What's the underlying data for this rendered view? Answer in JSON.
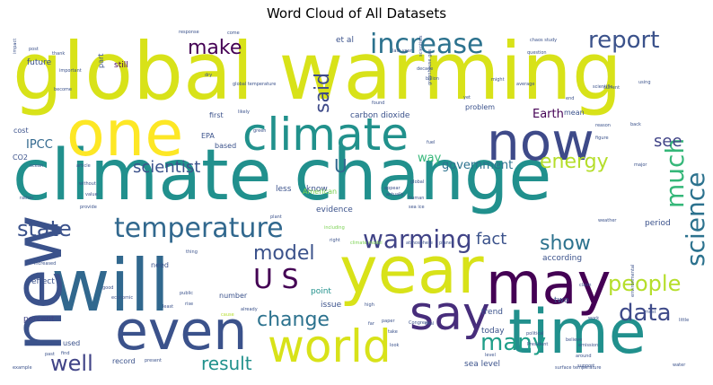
{
  "chart_data": {
    "type": "wordcloud",
    "title": "Word Cloud of All Datasets",
    "colormap": "viridis",
    "words": [
      {
        "text": "global warming",
        "weight": 100,
        "color": "#d8e219",
        "orientation": "horizontal"
      },
      {
        "text": "climate change",
        "weight": 92,
        "color": "#21908d",
        "orientation": "horizontal"
      },
      {
        "text": "year",
        "weight": 88,
        "color": "#d8e219",
        "orientation": "horizontal"
      },
      {
        "text": "will",
        "weight": 86,
        "color": "#31688e",
        "orientation": "horizontal"
      },
      {
        "text": "new",
        "weight": 80,
        "color": "#3b528b",
        "orientation": "vertical"
      },
      {
        "text": "one",
        "weight": 78,
        "color": "#fde725",
        "orientation": "horizontal"
      },
      {
        "text": "time",
        "weight": 74,
        "color": "#21908d",
        "orientation": "horizontal"
      },
      {
        "text": "may",
        "weight": 72,
        "color": "#440154",
        "orientation": "horizontal"
      },
      {
        "text": "even",
        "weight": 68,
        "color": "#3b528b",
        "orientation": "horizontal"
      },
      {
        "text": "now",
        "weight": 66,
        "color": "#3e4a89",
        "orientation": "horizontal"
      },
      {
        "text": "say",
        "weight": 64,
        "color": "#472d7b",
        "orientation": "horizontal"
      },
      {
        "text": "climate",
        "weight": 60,
        "color": "#21918c",
        "orientation": "horizontal"
      },
      {
        "text": "world",
        "weight": 58,
        "color": "#d8e219",
        "orientation": "horizontal"
      },
      {
        "text": "temperature",
        "weight": 40,
        "color": "#31688e",
        "orientation": "horizontal"
      },
      {
        "text": "increase",
        "weight": 38,
        "color": "#2c728e",
        "orientation": "horizontal"
      },
      {
        "text": "report",
        "weight": 34,
        "color": "#3b528b",
        "orientation": "horizontal"
      },
      {
        "text": "warming",
        "weight": 33,
        "color": "#414487",
        "orientation": "horizontal"
      },
      {
        "text": "science",
        "weight": 33,
        "color": "#2c728e",
        "orientation": "vertical"
      },
      {
        "text": "much",
        "weight": 32,
        "color": "#35b779",
        "orientation": "vertical"
      },
      {
        "text": "U S",
        "weight": 32,
        "color": "#440154",
        "orientation": "horizontal"
      },
      {
        "text": "state",
        "weight": 30,
        "color": "#3b528b",
        "orientation": "horizontal"
      },
      {
        "text": "data",
        "weight": 30,
        "color": "#3e4a89",
        "orientation": "horizontal"
      },
      {
        "text": "many",
        "weight": 30,
        "color": "#1f9e89",
        "orientation": "horizontal"
      },
      {
        "text": "people",
        "weight": 29,
        "color": "#b5de2b",
        "orientation": "horizontal"
      },
      {
        "text": "well",
        "weight": 28,
        "color": "#414487",
        "orientation": "horizontal"
      },
      {
        "text": "said",
        "weight": 28,
        "color": "#3e4a89",
        "orientation": "vertical"
      },
      {
        "text": "make",
        "weight": 27,
        "color": "#440154",
        "orientation": "horizontal"
      },
      {
        "text": "change",
        "weight": 26,
        "color": "#2c728e",
        "orientation": "horizontal"
      },
      {
        "text": "model",
        "weight": 26,
        "color": "#3b528b",
        "orientation": "horizontal"
      },
      {
        "text": "show",
        "weight": 25,
        "color": "#2c728e",
        "orientation": "horizontal"
      },
      {
        "text": "energy",
        "weight": 24,
        "color": "#b5de2b",
        "orientation": "horizontal"
      },
      {
        "text": "result",
        "weight": 22,
        "color": "#21918c",
        "orientation": "horizontal"
      },
      {
        "text": "scientist",
        "weight": 21,
        "color": "#3b528b",
        "orientation": "horizontal"
      },
      {
        "text": "fact",
        "weight": 21,
        "color": "#3b528b",
        "orientation": "horizontal"
      },
      {
        "text": "see",
        "weight": 20,
        "color": "#414487",
        "orientation": "horizontal"
      },
      {
        "text": "U",
        "weight": 20,
        "color": "#31688e",
        "orientation": "horizontal"
      },
      {
        "text": "IPCC",
        "weight": 14,
        "color": "#31688e",
        "orientation": "horizontal"
      },
      {
        "text": "Earth",
        "weight": 14,
        "color": "#440154",
        "orientation": "horizontal"
      },
      {
        "text": "government",
        "weight": 14,
        "color": "#2c728e",
        "orientation": "horizontal"
      },
      {
        "text": "way",
        "weight": 14,
        "color": "#35b779",
        "orientation": "horizontal"
      },
      {
        "text": "percent",
        "weight": 11,
        "color": "#414487",
        "orientation": "horizontal"
      },
      {
        "text": "carbon dioxide",
        "weight": 10,
        "color": "#3b528b",
        "orientation": "horizontal"
      },
      {
        "text": "future",
        "weight": 10,
        "color": "#3b528b",
        "orientation": "horizontal"
      },
      {
        "text": "still",
        "weight": 10,
        "color": "#440154",
        "orientation": "horizontal"
      },
      {
        "text": "et al",
        "weight": 10,
        "color": "#3b528b",
        "orientation": "horizontal"
      },
      {
        "text": "part",
        "weight": 9,
        "color": "#3b528b",
        "orientation": "vertical"
      },
      {
        "text": "less",
        "weight": 10,
        "color": "#3b528b",
        "orientation": "horizontal"
      },
      {
        "text": "know",
        "weight": 10,
        "color": "#3b528b",
        "orientation": "horizontal"
      },
      {
        "text": "evidence",
        "weight": 10,
        "color": "#3b528b",
        "orientation": "horizontal"
      },
      {
        "text": "according",
        "weight": 10,
        "color": "#3b528b",
        "orientation": "horizontal"
      },
      {
        "text": "period",
        "weight": 10,
        "color": "#3b528b",
        "orientation": "horizontal"
      },
      {
        "text": "issue",
        "weight": 10,
        "color": "#3b528b",
        "orientation": "horizontal"
      },
      {
        "text": "point",
        "weight": 10,
        "color": "#21918c",
        "orientation": "horizontal"
      },
      {
        "text": "trend",
        "weight": 10,
        "color": "#3b528b",
        "orientation": "horizontal"
      },
      {
        "text": "today",
        "weight": 10,
        "color": "#3b528b",
        "orientation": "horizontal"
      },
      {
        "text": "two",
        "weight": 10,
        "color": "#3b528b",
        "orientation": "horizontal"
      },
      {
        "text": "sea level",
        "weight": 10,
        "color": "#3b528b",
        "orientation": "horizontal"
      },
      {
        "text": "effect",
        "weight": 10,
        "color": "#3b528b",
        "orientation": "horizontal"
      },
      {
        "text": "need",
        "weight": 9,
        "color": "#3b528b",
        "orientation": "horizontal"
      },
      {
        "text": "number",
        "weight": 9,
        "color": "#3b528b",
        "orientation": "horizontal"
      },
      {
        "text": "record",
        "weight": 9,
        "color": "#3b528b",
        "orientation": "horizontal"
      },
      {
        "text": "used",
        "weight": 9,
        "color": "#3b528b",
        "orientation": "horizontal"
      },
      {
        "text": "use",
        "weight": 9,
        "color": "#3b528b",
        "orientation": "horizontal"
      },
      {
        "text": "cost",
        "weight": 9,
        "color": "#3b528b",
        "orientation": "horizontal"
      },
      {
        "text": "CO2",
        "weight": 9,
        "color": "#3b528b",
        "orientation": "horizontal"
      },
      {
        "text": "EPA",
        "weight": 9,
        "color": "#3b528b",
        "orientation": "horizontal"
      },
      {
        "text": "based",
        "weight": 9,
        "color": "#3b528b",
        "orientation": "horizontal"
      },
      {
        "text": "first",
        "weight": 9,
        "color": "#3b528b",
        "orientation": "horizontal"
      },
      {
        "text": "problem",
        "weight": 9,
        "color": "#3b528b",
        "orientation": "horizontal"
      },
      {
        "text": "mean",
        "weight": 9,
        "color": "#3b528b",
        "orientation": "horizontal"
      },
      {
        "text": "American",
        "weight": 8,
        "color": "#7ad151",
        "orientation": "horizontal"
      },
      {
        "text": "climate model",
        "weight": 4,
        "color": "#7ad151",
        "orientation": "horizontal"
      },
      {
        "text": "atmosphere",
        "weight": 4,
        "color": "#3b528b",
        "orientation": "horizontal"
      },
      {
        "text": "planet",
        "weight": 4,
        "color": "#3b528b",
        "orientation": "horizontal"
      },
      {
        "text": "surface temperature",
        "weight": 4,
        "color": "#3b528b",
        "orientation": "horizontal"
      },
      {
        "text": "last year",
        "weight": 4,
        "color": "#3b528b",
        "orientation": "horizontal"
      },
      {
        "text": "global temperature",
        "weight": 4,
        "color": "#3b528b",
        "orientation": "horizontal"
      },
      {
        "text": "response",
        "weight": 4,
        "color": "#3b528b",
        "orientation": "horizontal"
      },
      {
        "text": "chaos study",
        "weight": 4,
        "color": "#3b528b",
        "orientation": "horizontal"
      },
      {
        "text": "question",
        "weight": 4,
        "color": "#3b528b",
        "orientation": "horizontal"
      },
      {
        "text": "decade",
        "weight": 4,
        "color": "#3b528b",
        "orientation": "horizontal"
      },
      {
        "text": "billion",
        "weight": 4,
        "color": "#3b528b",
        "orientation": "horizontal"
      },
      {
        "text": "average",
        "weight": 4,
        "color": "#3b528b",
        "orientation": "horizontal"
      },
      {
        "text": "important",
        "weight": 4,
        "color": "#3b528b",
        "orientation": "horizontal"
      },
      {
        "text": "thank",
        "weight": 4,
        "color": "#3b528b",
        "orientation": "horizontal"
      },
      {
        "text": "post",
        "weight": 4,
        "color": "#3b528b",
        "orientation": "horizontal"
      },
      {
        "text": "found",
        "weight": 4,
        "color": "#3b528b",
        "orientation": "horizontal"
      },
      {
        "text": "scientific",
        "weight": 4,
        "color": "#3b528b",
        "orientation": "horizontal"
      },
      {
        "text": "reason",
        "weight": 4,
        "color": "#3b528b",
        "orientation": "horizontal"
      },
      {
        "text": "major",
        "weight": 4,
        "color": "#3b528b",
        "orientation": "horizontal"
      },
      {
        "text": "green",
        "weight": 4,
        "color": "#3b528b",
        "orientation": "horizontal"
      },
      {
        "text": "global",
        "weight": 4,
        "color": "#3b528b",
        "orientation": "horizontal"
      },
      {
        "text": "actually",
        "weight": 4,
        "color": "#3b528b",
        "orientation": "horizontal"
      },
      {
        "text": "appear",
        "weight": 4,
        "color": "#3b528b",
        "orientation": "horizontal"
      },
      {
        "text": "article",
        "weight": 4,
        "color": "#3b528b",
        "orientation": "horizontal"
      },
      {
        "text": "without",
        "weight": 4,
        "color": "#3b528b",
        "orientation": "horizontal"
      },
      {
        "text": "value",
        "weight": 4,
        "color": "#3b528b",
        "orientation": "horizontal"
      },
      {
        "text": "provide",
        "weight": 4,
        "color": "#3b528b",
        "orientation": "horizontal"
      },
      {
        "text": "plant",
        "weight": 4,
        "color": "#3b528b",
        "orientation": "horizontal"
      },
      {
        "text": "human",
        "weight": 4,
        "color": "#3b528b",
        "orientation": "horizontal"
      },
      {
        "text": "sea ice",
        "weight": 4,
        "color": "#3b528b",
        "orientation": "horizontal"
      },
      {
        "text": "increased",
        "weight": 4,
        "color": "#3b528b",
        "orientation": "horizontal"
      },
      {
        "text": "thing",
        "weight": 4,
        "color": "#3b528b",
        "orientation": "horizontal"
      },
      {
        "text": "public",
        "weight": 4,
        "color": "#3b528b",
        "orientation": "horizontal"
      },
      {
        "text": "rise",
        "weight": 4,
        "color": "#3b528b",
        "orientation": "horizontal"
      },
      {
        "text": "cause",
        "weight": 4,
        "color": "#b5de2b",
        "orientation": "horizontal"
      },
      {
        "text": "high",
        "weight": 4,
        "color": "#3b528b",
        "orientation": "horizontal"
      },
      {
        "text": "paper",
        "weight": 4,
        "color": "#3b528b",
        "orientation": "horizontal"
      },
      {
        "text": "claim",
        "weight": 4,
        "color": "#3b528b",
        "orientation": "horizontal"
      },
      {
        "text": "work",
        "weight": 4,
        "color": "#3b528b",
        "orientation": "horizontal"
      },
      {
        "text": "must",
        "weight": 4,
        "color": "#3b528b",
        "orientation": "horizontal"
      },
      {
        "text": "little",
        "weight": 4,
        "color": "#3b528b",
        "orientation": "horizontal"
      },
      {
        "text": "good",
        "weight": 4,
        "color": "#3b528b",
        "orientation": "horizontal"
      },
      {
        "text": "economic",
        "weight": 4,
        "color": "#3b528b",
        "orientation": "horizontal"
      },
      {
        "text": "least",
        "weight": 4,
        "color": "#3b528b",
        "orientation": "horizontal"
      },
      {
        "text": "political",
        "weight": 4,
        "color": "#3b528b",
        "orientation": "horizontal"
      },
      {
        "text": "President",
        "weight": 4,
        "color": "#3b528b",
        "orientation": "horizontal"
      },
      {
        "text": "emission",
        "weight": 4,
        "color": "#3b528b",
        "orientation": "horizontal"
      },
      {
        "text": "around",
        "weight": 4,
        "color": "#3b528b",
        "orientation": "horizontal"
      },
      {
        "text": "support",
        "weight": 4,
        "color": "#3b528b",
        "orientation": "horizontal"
      },
      {
        "text": "water",
        "weight": 4,
        "color": "#3b528b",
        "orientation": "horizontal"
      },
      {
        "text": "find",
        "weight": 4,
        "color": "#3b528b",
        "orientation": "horizontal"
      },
      {
        "text": "past",
        "weight": 4,
        "color": "#3b528b",
        "orientation": "horizontal"
      },
      {
        "text": "example",
        "weight": 4,
        "color": "#3b528b",
        "orientation": "horizontal"
      },
      {
        "text": "already",
        "weight": 4,
        "color": "#3b528b",
        "orientation": "horizontal"
      },
      {
        "text": "far",
        "weight": 4,
        "color": "#3b528b",
        "orientation": "horizontal"
      },
      {
        "text": "take",
        "weight": 4,
        "color": "#3b528b",
        "orientation": "horizontal"
      },
      {
        "text": "look",
        "weight": 4,
        "color": "#3b528b",
        "orientation": "horizontal"
      },
      {
        "text": "including",
        "weight": 4,
        "color": "#7ad151",
        "orientation": "horizontal"
      },
      {
        "text": "right",
        "weight": 4,
        "color": "#3b528b",
        "orientation": "horizontal"
      },
      {
        "text": "Congress",
        "weight": 4,
        "color": "#3b528b",
        "orientation": "horizontal"
      },
      {
        "text": "coal",
        "weight": 4,
        "color": "#3b528b",
        "orientation": "horizontal"
      },
      {
        "text": "figure",
        "weight": 4,
        "color": "#3b528b",
        "orientation": "horizontal"
      },
      {
        "text": "likely",
        "weight": 4,
        "color": "#3b528b",
        "orientation": "horizontal"
      },
      {
        "text": "fuel",
        "weight": 4,
        "color": "#3b528b",
        "orientation": "horizontal"
      },
      {
        "text": "current",
        "weight": 4,
        "color": "#3b528b",
        "orientation": "horizontal"
      },
      {
        "text": "using",
        "weight": 4,
        "color": "#3b528b",
        "orientation": "horizontal"
      },
      {
        "text": "back",
        "weight": 4,
        "color": "#3b528b",
        "orientation": "horizontal"
      },
      {
        "text": "yet",
        "weight": 4,
        "color": "#3b528b",
        "orientation": "horizontal"
      },
      {
        "text": "might",
        "weight": 4,
        "color": "#3b528b",
        "orientation": "horizontal"
      },
      {
        "text": "end",
        "weight": 4,
        "color": "#3b528b",
        "orientation": "horizontal"
      },
      {
        "text": "weather",
        "weight": 4,
        "color": "#3b528b",
        "orientation": "horizontal"
      },
      {
        "text": "become",
        "weight": 4,
        "color": "#3b528b",
        "orientation": "horizontal"
      },
      {
        "text": "ocean",
        "weight": 4,
        "color": "#3b528b",
        "orientation": "horizontal"
      },
      {
        "text": "rather",
        "weight": 4,
        "color": "#3b528b",
        "orientation": "horizontal"
      },
      {
        "text": "present",
        "weight": 4,
        "color": "#3b528b",
        "orientation": "horizontal"
      },
      {
        "text": "believe",
        "weight": 4,
        "color": "#3b528b",
        "orientation": "horizontal"
      },
      {
        "text": "dry",
        "weight": 4,
        "color": "#3b528b",
        "orientation": "horizontal"
      },
      {
        "text": "come",
        "weight": 4,
        "color": "#3b528b",
        "orientation": "horizontal"
      },
      {
        "text": "level",
        "weight": 4,
        "color": "#3b528b",
        "orientation": "horizontal"
      },
      {
        "text": "environmental",
        "weight": 4,
        "color": "#3b528b",
        "orientation": "vertical"
      },
      {
        "text": "greenhouse gas",
        "weight": 4,
        "color": "#3b528b",
        "orientation": "vertical"
      },
      {
        "text": "scientists",
        "weight": 4,
        "color": "#3b528b",
        "orientation": "vertical"
      },
      {
        "text": "impact",
        "weight": 4,
        "color": "#3b528b",
        "orientation": "vertical"
      }
    ]
  }
}
